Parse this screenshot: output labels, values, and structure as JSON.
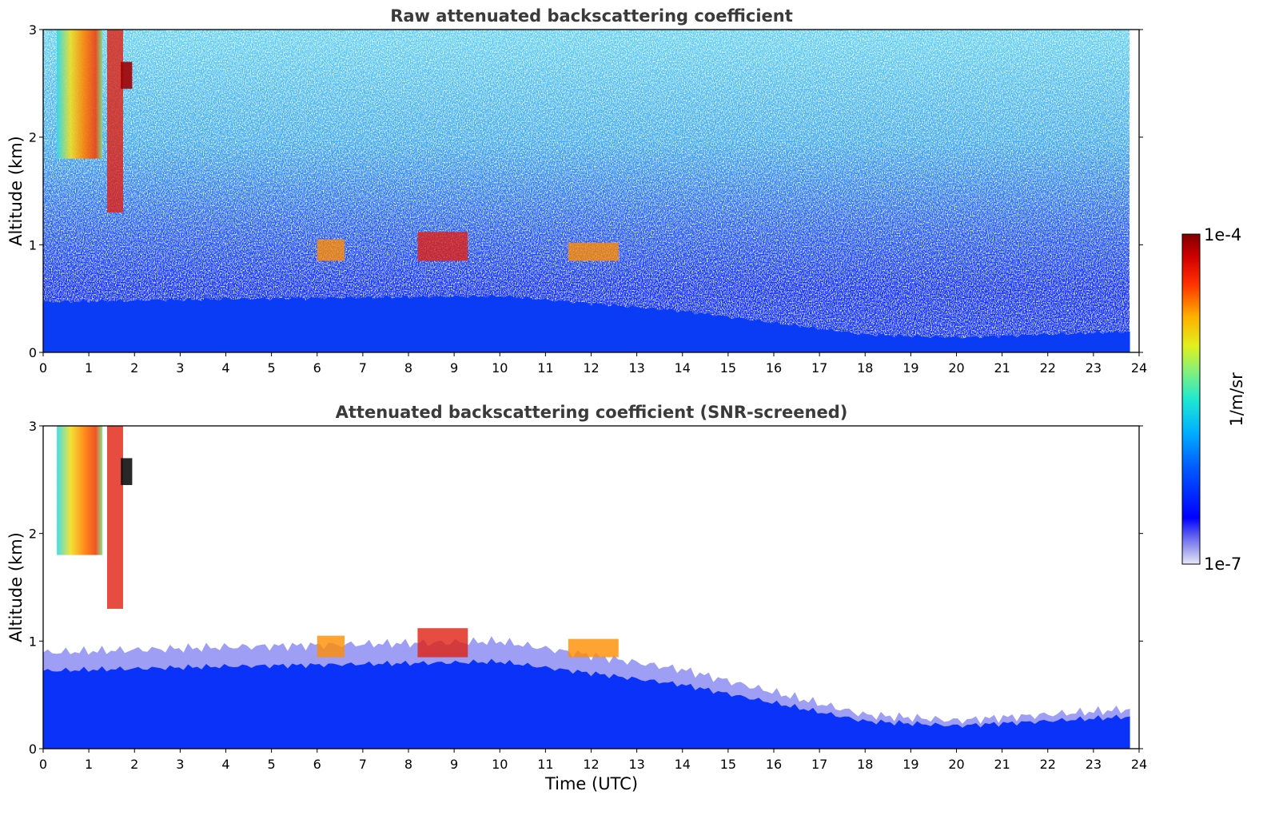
{
  "chart_data": [
    {
      "type": "heatmap",
      "title": "Raw attenuated backscattering coefficient",
      "xlabel": "",
      "ylabel": "Altitude (km)",
      "xlim": [
        0,
        24
      ],
      "ylim": [
        0,
        3
      ],
      "x_ticks": [
        "0",
        "1",
        "2",
        "3",
        "4",
        "5",
        "6",
        "7",
        "8",
        "9",
        "10",
        "11",
        "12",
        "13",
        "14",
        "15",
        "16",
        "17",
        "18",
        "19",
        "20",
        "21",
        "22",
        "23",
        "24"
      ],
      "y_ticks": [
        "0",
        "1",
        "2",
        "3"
      ],
      "grid": false,
      "data_end_hour": 23.8,
      "boundary_layer_top_km": [
        {
          "t": 0,
          "z": 0.85
        },
        {
          "t": 4,
          "z": 0.9
        },
        {
          "t": 10,
          "z": 0.95
        },
        {
          "t": 14,
          "z": 0.7
        },
        {
          "t": 16,
          "z": 0.5
        },
        {
          "t": 18,
          "z": 0.3
        },
        {
          "t": 20,
          "z": 0.25
        },
        {
          "t": 23.8,
          "z": 0.35
        }
      ],
      "cloud_features": [
        {
          "t0": 0.3,
          "t1": 1.3,
          "z0": 1.8,
          "z1": 3.0,
          "level": "high"
        },
        {
          "t0": 1.4,
          "t1": 1.75,
          "z0": 1.3,
          "z1": 3.0,
          "level": "very high"
        },
        {
          "t0": 1.7,
          "t1": 1.95,
          "z0": 2.45,
          "z1": 2.7,
          "level": "max"
        },
        {
          "t0": 6.0,
          "t1": 6.6,
          "z0": 0.85,
          "z1": 1.05,
          "level": "high"
        },
        {
          "t0": 8.2,
          "t1": 9.3,
          "z0": 0.85,
          "z1": 1.12,
          "level": "very high"
        },
        {
          "t0": 11.5,
          "t1": 12.6,
          "z0": 0.85,
          "z1": 1.02,
          "level": "high"
        }
      ]
    },
    {
      "type": "heatmap",
      "title": "Attenuated backscattering coefficient (SNR-screened)",
      "xlabel": "Time (UTC)",
      "ylabel": "Altitude (km)",
      "xlim": [
        0,
        24
      ],
      "ylim": [
        0,
        3
      ],
      "x_ticks": [
        "0",
        "1",
        "2",
        "3",
        "4",
        "5",
        "6",
        "7",
        "8",
        "9",
        "10",
        "11",
        "12",
        "13",
        "14",
        "15",
        "16",
        "17",
        "18",
        "19",
        "20",
        "21",
        "22",
        "23",
        "24"
      ],
      "y_ticks": [
        "0",
        "1",
        "2",
        "3"
      ],
      "grid": false,
      "data_end_hour": 23.8
    }
  ],
  "colorbar": {
    "label": "1/m/sr",
    "min_label": "1e-7",
    "max_label": "1e-4",
    "scale": "log",
    "colormap": "jet"
  }
}
